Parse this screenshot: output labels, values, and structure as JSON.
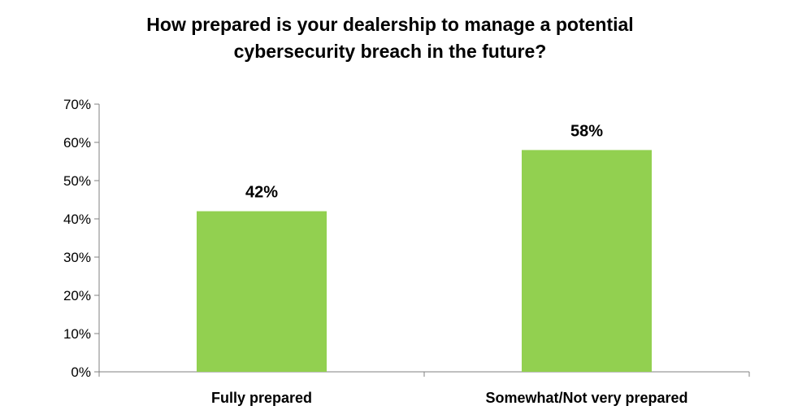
{
  "chart_data": {
    "type": "bar",
    "title_lines": [
      "How prepared is your dealership to manage a potential",
      "cybersecurity breach in the future?"
    ],
    "categories": [
      "Fully prepared",
      "Somewhat/Not very prepared"
    ],
    "values": [
      42,
      58
    ],
    "data_labels": [
      "42%",
      "58%"
    ],
    "ylim": [
      0,
      70
    ],
    "yticks": [
      0,
      10,
      20,
      30,
      40,
      50,
      60,
      70
    ],
    "ytick_labels": [
      "0%",
      "10%",
      "20%",
      "30%",
      "40%",
      "50%",
      "60%",
      "70%"
    ],
    "grid": false,
    "legend": "none",
    "bar_color": "#92D050",
    "axis_color": "#808080"
  }
}
